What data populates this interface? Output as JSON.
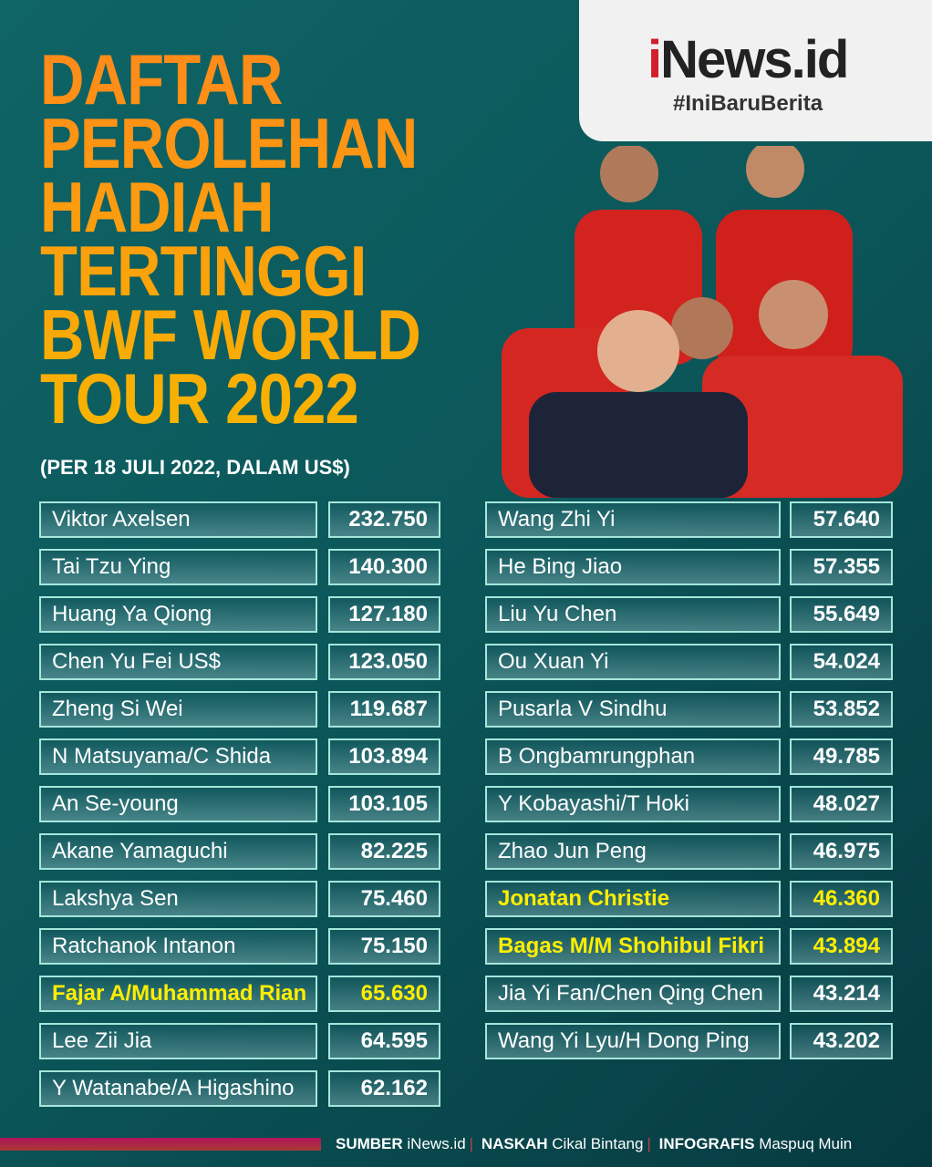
{
  "brand": {
    "logo": "iNews.id",
    "tagline": "#IniBaruBerita",
    "accent": "#d21f2c"
  },
  "title_lines": [
    "DAFTAR",
    "PEROLEHAN",
    "HADIAH",
    "TERTINGGI",
    "BWF WORLD",
    "TOUR 2022"
  ],
  "subtitle": "(PER 18 JULI 2022, DALAM US$)",
  "left": [
    {
      "name": "Viktor Axelsen",
      "value": "232.750"
    },
    {
      "name": "Tai Tzu Ying",
      "value": "140.300"
    },
    {
      "name": "Huang Ya Qiong",
      "value": "127.180"
    },
    {
      "name": "Chen Yu Fei US$",
      "value": "123.050"
    },
    {
      "name": "Zheng Si Wei",
      "value": "119.687"
    },
    {
      "name": "N Matsuyama/C Shida",
      "value": "103.894"
    },
    {
      "name": "An Se-young",
      "value": "103.105"
    },
    {
      "name": "Akane Yamaguchi",
      "value": "82.225"
    },
    {
      "name": "Lakshya Sen",
      "value": "75.460"
    },
    {
      "name": "Ratchanok Intanon",
      "value": "75.150"
    },
    {
      "name": "Fajar A/Muhammad Rian",
      "value": "65.630",
      "highlight": true
    },
    {
      "name": "Lee Zii Jia",
      "value": "64.595"
    },
    {
      "name": "Y Watanabe/A Higashino",
      "value": "62.162"
    }
  ],
  "right": [
    {
      "name": "Wang Zhi Yi",
      "value": "57.640"
    },
    {
      "name": "He Bing Jiao",
      "value": "57.355"
    },
    {
      "name": "Liu Yu Chen",
      "value": "55.649"
    },
    {
      "name": "Ou Xuan Yi",
      "value": "54.024"
    },
    {
      "name": "Pusarla V Sindhu",
      "value": "53.852"
    },
    {
      "name": "B Ongbamrungphan",
      "value": "49.785"
    },
    {
      "name": "Y Kobayashi/T Hoki",
      "value": "48.027"
    },
    {
      "name": "Zhao Jun Peng",
      "value": "46.975"
    },
    {
      "name": "Jonatan Christie",
      "value": "46.360",
      "highlight": true
    },
    {
      "name": "Bagas M/M Shohibul Fikri",
      "value": "43.894",
      "highlight": true
    },
    {
      "name": "Jia Yi Fan/Chen Qing Chen",
      "value": "43.214"
    },
    {
      "name": "Wang Yi Lyu/H Dong Ping",
      "value": "43.202"
    }
  ],
  "footer": {
    "source_label": "SUMBER",
    "source": "iNews.id",
    "writer_label": "NASKAH",
    "writer": "Cikal Bintang",
    "graphic_label": "INFOGRAFIS",
    "graphic": "Maspuq Muin"
  },
  "colors": {
    "highlight": "#ffee00",
    "title_top": "#ff8a1a",
    "title_bottom": "#f7b400"
  }
}
